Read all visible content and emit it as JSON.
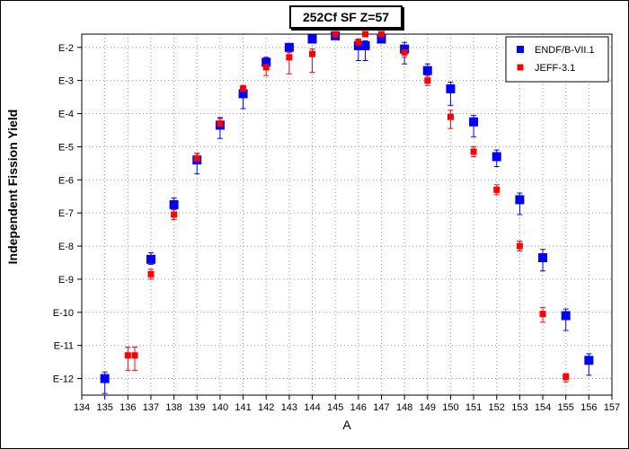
{
  "chart_data": {
    "type": "scatter",
    "title": "252Cf SF Z=57",
    "xlabel": "A",
    "ylabel": "Independent Fission Yield",
    "xlim": [
      134,
      157
    ],
    "ylim": [
      -12.5,
      -1.6
    ],
    "y_scale": "log10",
    "x_ticks": [
      "134",
      "135",
      "136",
      "137",
      "138",
      "139",
      "140",
      "141",
      "142",
      "143",
      "144",
      "145",
      "146",
      "147",
      "148",
      "149",
      "150",
      "151",
      "152",
      "153",
      "154",
      "155",
      "156",
      "157"
    ],
    "y_ticks": [
      {
        "value": -2,
        "label": "E-2"
      },
      {
        "value": -3,
        "label": "E-3"
      },
      {
        "value": -4,
        "label": "E-4"
      },
      {
        "value": -5,
        "label": "E-5"
      },
      {
        "value": -6,
        "label": "E-6"
      },
      {
        "value": -7,
        "label": "E-7"
      },
      {
        "value": -8,
        "label": "E-8"
      },
      {
        "value": -9,
        "label": "E-9"
      },
      {
        "value": -10,
        "label": "E-10"
      },
      {
        "value": -11,
        "label": "E-11"
      },
      {
        "value": -12,
        "label": "E-12"
      }
    ],
    "grid": true,
    "legend_position": "top-right",
    "series": [
      {
        "name": "ENDF/B-VII.1",
        "color": "#0000ff",
        "marker": "square-large",
        "points": [
          {
            "x": 135,
            "y": -12.0,
            "lo": -12.45,
            "hi": -11.8
          },
          {
            "x": 137,
            "y": -8.4,
            "lo": -8.55,
            "hi": -8.2
          },
          {
            "x": 138,
            "y": -6.75,
            "lo": -6.9,
            "hi": -6.55
          },
          {
            "x": 139,
            "y": -5.4,
            "lo": -5.82,
            "hi": -5.2
          },
          {
            "x": 140,
            "y": -4.35,
            "lo": -4.75,
            "hi": -4.12
          },
          {
            "x": 141,
            "y": -3.4,
            "lo": -3.85,
            "hi": -3.25
          },
          {
            "x": 142,
            "y": -2.45,
            "lo": -2.65,
            "hi": -2.3
          },
          {
            "x": 143,
            "y": -2.0,
            "lo": -2.1,
            "hi": -1.9
          },
          {
            "x": 144,
            "y": -1.75,
            "lo": -1.8,
            "hi": -1.7
          },
          {
            "x": 145,
            "y": -1.65,
            "lo": -1.75,
            "hi": -1.6
          },
          {
            "x": 146,
            "y": -1.95,
            "lo": -2.4,
            "hi": -1.8
          },
          {
            "x": 146.3,
            "y": -1.95,
            "lo": -2.4,
            "hi": -1.8
          },
          {
            "x": 147,
            "y": -1.75,
            "lo": -1.85,
            "hi": -1.65
          },
          {
            "x": 148,
            "y": -2.05,
            "lo": -2.5,
            "hi": -1.85
          },
          {
            "x": 149,
            "y": -2.7,
            "lo": -2.95,
            "hi": -2.5
          },
          {
            "x": 150,
            "y": -3.25,
            "lo": -3.75,
            "hi": -3.05
          },
          {
            "x": 151,
            "y": -4.25,
            "lo": -4.7,
            "hi": -4.05
          },
          {
            "x": 152,
            "y": -5.3,
            "lo": -5.6,
            "hi": -5.1
          },
          {
            "x": 153,
            "y": -6.6,
            "lo": -7.05,
            "hi": -6.4
          },
          {
            "x": 154,
            "y": -8.35,
            "lo": -8.75,
            "hi": -8.1
          },
          {
            "x": 155,
            "y": -10.1,
            "lo": -10.55,
            "hi": -9.9
          },
          {
            "x": 156,
            "y": -11.45,
            "lo": -11.9,
            "hi": -11.25
          }
        ]
      },
      {
        "name": "JEFF-3.1",
        "color": "#ff0000",
        "marker": "square-small",
        "points": [
          {
            "x": 136,
            "y": -11.3,
            "lo": -11.75,
            "hi": -11.05
          },
          {
            "x": 136.3,
            "y": -11.3,
            "lo": -11.75,
            "hi": -11.05
          },
          {
            "x": 137,
            "y": -8.85,
            "lo": -9.0,
            "hi": -8.7
          },
          {
            "x": 138,
            "y": -7.05,
            "lo": -7.2,
            "hi": -6.9
          },
          {
            "x": 139,
            "y": -5.35,
            "lo": -5.5,
            "hi": -5.2
          },
          {
            "x": 140,
            "y": -4.3,
            "lo": -4.45,
            "hi": -4.15
          },
          {
            "x": 141,
            "y": -3.25,
            "lo": -3.4,
            "hi": -3.15
          },
          {
            "x": 142,
            "y": -2.6,
            "lo": -2.85,
            "hi": -2.45
          },
          {
            "x": 143,
            "y": -2.3,
            "lo": -2.8,
            "hi": -2.15
          },
          {
            "x": 144,
            "y": -2.2,
            "lo": -2.75,
            "hi": -2.05
          },
          {
            "x": 145,
            "y": -1.6,
            "lo": -1.65,
            "hi": -1.55
          },
          {
            "x": 146,
            "y": -1.85,
            "lo": -1.95,
            "hi": -1.75
          },
          {
            "x": 146.3,
            "y": -1.6,
            "lo": -1.65,
            "hi": -1.55
          },
          {
            "x": 147,
            "y": -1.6,
            "lo": -1.7,
            "hi": -1.55
          },
          {
            "x": 148,
            "y": -2.15,
            "lo": -2.3,
            "hi": -2.0
          },
          {
            "x": 149,
            "y": -3.0,
            "lo": -3.15,
            "hi": -2.85
          },
          {
            "x": 150,
            "y": -4.1,
            "lo": -4.45,
            "hi": -3.9
          },
          {
            "x": 151,
            "y": -5.15,
            "lo": -5.3,
            "hi": -5.0
          },
          {
            "x": 152,
            "y": -6.3,
            "lo": -6.45,
            "hi": -6.15
          },
          {
            "x": 153,
            "y": -8.0,
            "lo": -8.15,
            "hi": -7.85
          },
          {
            "x": 154,
            "y": -10.05,
            "lo": -10.3,
            "hi": -9.85
          },
          {
            "x": 155,
            "y": -11.95,
            "lo": -12.1,
            "hi": -11.85
          }
        ]
      }
    ]
  }
}
